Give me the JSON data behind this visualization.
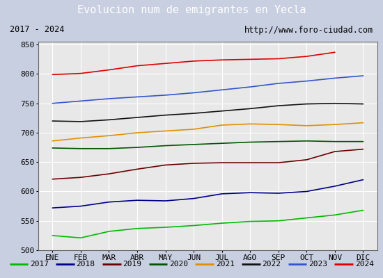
{
  "title": "Evolucion num de emigrantes en Yecla",
  "title_bg": "#4a7fc1",
  "subtitle_left": "2017 - 2024",
  "subtitle_right": "http://www.foro-ciudad.com",
  "months": [
    "ENE",
    "FEB",
    "MAR",
    "ABR",
    "MAY",
    "JUN",
    "JUL",
    "AGO",
    "SEP",
    "OCT",
    "NOV",
    "DIC"
  ],
  "ylim": [
    500,
    855
  ],
  "yticks": [
    500,
    550,
    600,
    650,
    700,
    750,
    800,
    850
  ],
  "series": {
    "2017": {
      "color": "#00bb00",
      "values": [
        525,
        521,
        532,
        537,
        539,
        542,
        546,
        549,
        550,
        555,
        560,
        568
      ]
    },
    "2018": {
      "color": "#00008b",
      "values": [
        572,
        575,
        582,
        585,
        584,
        588,
        596,
        598,
        597,
        600,
        609,
        620
      ]
    },
    "2019": {
      "color": "#6b0000",
      "values": [
        621,
        624,
        630,
        638,
        645,
        648,
        649,
        649,
        649,
        654,
        668,
        672
      ]
    },
    "2020": {
      "color": "#005500",
      "values": [
        674,
        673,
        673,
        675,
        678,
        680,
        682,
        684,
        685,
        686,
        685,
        685
      ]
    },
    "2021": {
      "color": "#e09000",
      "values": [
        686,
        691,
        695,
        700,
        703,
        706,
        713,
        715,
        714,
        712,
        714,
        717
      ]
    },
    "2022": {
      "color": "#111111",
      "values": [
        720,
        719,
        722,
        726,
        730,
        733,
        737,
        741,
        746,
        749,
        750,
        749
      ]
    },
    "2023": {
      "color": "#3355cc",
      "values": [
        750,
        754,
        758,
        761,
        764,
        768,
        773,
        778,
        784,
        788,
        793,
        797
      ]
    },
    "2024": {
      "color": "#dd0000",
      "values": [
        799,
        801,
        807,
        814,
        818,
        822,
        824,
        825,
        826,
        830,
        837,
        null
      ]
    }
  },
  "legend_order": [
    "2017",
    "2018",
    "2019",
    "2020",
    "2021",
    "2022",
    "2023",
    "2024"
  ],
  "bg_plot": "#e8e8e8",
  "bg_title": "#4a7fc1",
  "bg_sub": "#d8d8d8",
  "bg_fig": "#c8cfe0",
  "grid_color": "#ffffff",
  "border_color": "#666666",
  "tick_fontsize": 8,
  "label_fontsize": 8
}
